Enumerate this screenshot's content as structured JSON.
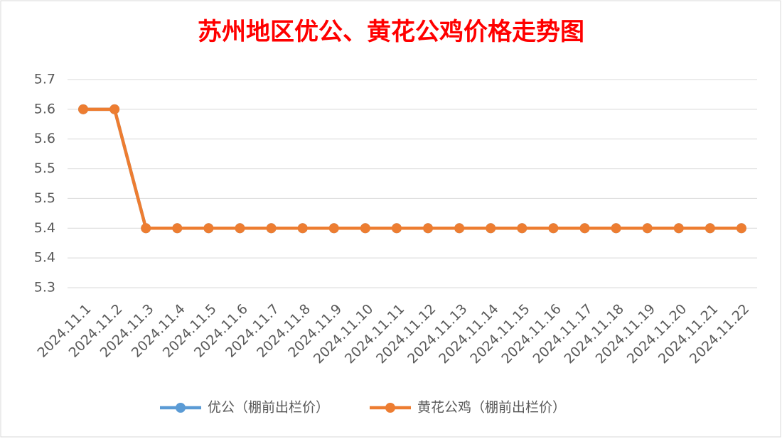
{
  "chart_data": {
    "type": "line",
    "title": "苏州地区优公、黄花公鸡价格走势图",
    "categories": [
      "2024.11.1",
      "2024.11.2",
      "2024.11.3",
      "2024.11.4",
      "2024.11.5",
      "2024.11.6",
      "2024.11.7",
      "2024.11.8",
      "2024.11.9",
      "2024.11.10",
      "2024.11.11",
      "2024.11.12",
      "2024.11.13",
      "2024.11.14",
      "2024.11.15",
      "2024.11.16",
      "2024.11.17",
      "2024.11.18",
      "2024.11.19",
      "2024.11.20",
      "2024.11.21",
      "2024.11.22"
    ],
    "series": [
      {
        "name": "优公（棚前出栏价）",
        "color": "#5b9bd5",
        "values": [
          5.6,
          5.6,
          5.4,
          5.4,
          5.4,
          5.4,
          5.4,
          5.4,
          5.4,
          5.4,
          5.4,
          5.4,
          5.4,
          5.4,
          5.4,
          5.4,
          5.4,
          5.4,
          5.4,
          5.4,
          5.4,
          5.4
        ]
      },
      {
        "name": "黄花公鸡（棚前出栏价）",
        "color": "#ed7d31",
        "values": [
          5.6,
          5.6,
          5.4,
          5.4,
          5.4,
          5.4,
          5.4,
          5.4,
          5.4,
          5.4,
          5.4,
          5.4,
          5.4,
          5.4,
          5.4,
          5.4,
          5.4,
          5.4,
          5.4,
          5.4,
          5.4,
          5.4
        ]
      }
    ],
    "ylim": [
      5.3,
      5.65
    ],
    "yticks": [
      5.3,
      {
        "value": 5.35,
        "label": "5.4"
      },
      5.4,
      {
        "value": 5.45,
        "label": "5.5"
      },
      5.5,
      {
        "value": 5.55,
        "label": "5.6"
      },
      5.6,
      {
        "value": 5.65,
        "label": "5.7"
      }
    ],
    "grid": true,
    "legend": "bottom"
  }
}
